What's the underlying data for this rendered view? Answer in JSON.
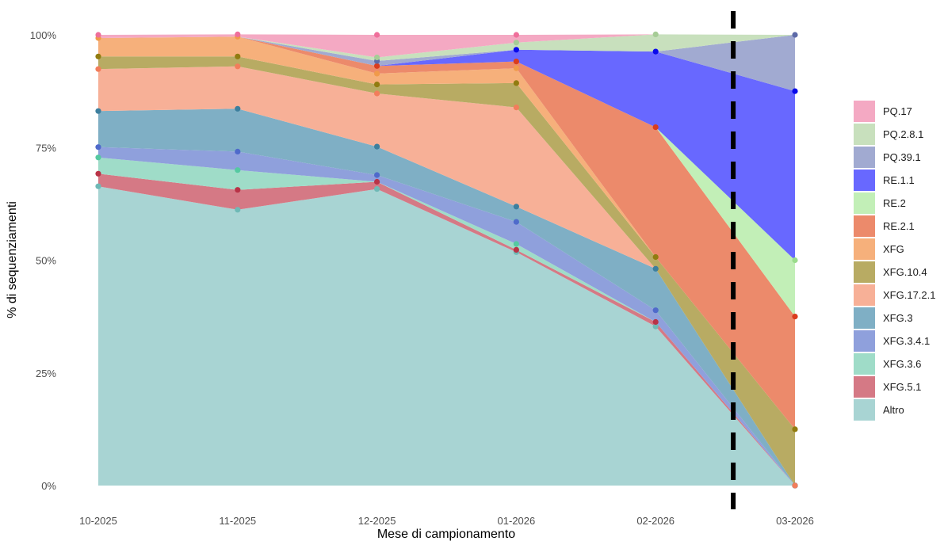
{
  "chart_data": {
    "type": "area",
    "stacked": true,
    "normalized": true,
    "title": "",
    "xlabel": "Mese di campionamento",
    "ylabel": "% di sequenziamenti",
    "x": [
      "10-2025",
      "11-2025",
      "12-2025",
      "01-2026",
      "02-2026",
      "03-2026"
    ],
    "y_ticks": [
      "0%",
      "25%",
      "50%",
      "75%",
      "100%"
    ],
    "ylim": [
      0,
      100
    ],
    "grid": false,
    "legend_position": "right",
    "marker": {
      "type": "dashed-vertical-line",
      "between": [
        "02-2026",
        "03-2026"
      ],
      "color": "#000000"
    },
    "series": [
      {
        "name": "Altro",
        "color": "#a8d4d3",
        "point_color": "#6fb9b6",
        "values": [
          66.4,
          61.2,
          65.8,
          51.8,
          35.3,
          0
        ]
      },
      {
        "name": "XFG.5.1",
        "color": "#d57985",
        "point_color": "#b93347",
        "values": [
          2.8,
          4.4,
          1.6,
          0.5,
          1.0,
          0
        ]
      },
      {
        "name": "XFG.3.6",
        "color": "#9fdcc8",
        "point_color": "#55c9a1",
        "values": [
          3.6,
          4.4,
          0,
          1.3,
          0,
          0
        ]
      },
      {
        "name": "XFG.3.4.1",
        "color": "#8fa0dc",
        "point_color": "#4f6acb",
        "values": [
          2.3,
          4.1,
          1.5,
          4.9,
          2.6,
          0
        ]
      },
      {
        "name": "XFG.3",
        "color": "#7fafc5",
        "point_color": "#3d7f9e",
        "values": [
          8.0,
          9.5,
          6.3,
          3.4,
          9.2,
          0
        ]
      },
      {
        "name": "XFG.17.2.1",
        "color": "#f7b097",
        "point_color": "#f27d5b",
        "values": [
          9.3,
          9.4,
          11.8,
          22.0,
          0,
          0
        ]
      },
      {
        "name": "XFG.10.4",
        "color": "#b8ab63",
        "point_color": "#917c10",
        "values": [
          2.8,
          2.2,
          2.0,
          5.4,
          2.6,
          12.5
        ]
      },
      {
        "name": "XFG",
        "color": "#f6b07b",
        "point_color": "#f09a4a",
        "values": [
          4.1,
          4.4,
          2.4,
          3.3,
          0,
          0
        ]
      },
      {
        "name": "RE.2.1",
        "color": "#ec8a6b",
        "point_color": "#da3c1e",
        "values": [
          0,
          0,
          1.7,
          1.5,
          28.8,
          25.0
        ]
      },
      {
        "name": "RE.2",
        "color": "#c2efb7",
        "point_color": "#9bdc8c",
        "values": [
          0,
          0,
          0,
          0,
          0,
          12.5
        ]
      },
      {
        "name": "RE.1.1",
        "color": "#6868ff",
        "point_color": "#0a0aeb",
        "values": [
          0,
          0,
          0,
          2.6,
          16.8,
          37.5
        ]
      },
      {
        "name": "PQ.39.1",
        "color": "#a1aad1",
        "point_color": "#5d6aa8",
        "values": [
          0,
          0,
          1.1,
          0,
          0,
          12.5
        ]
      },
      {
        "name": "PQ.2.8.1",
        "color": "#c8e0bd",
        "point_color": "#a6cc96",
        "values": [
          0,
          0,
          0.8,
          1.6,
          3.8,
          0
        ]
      },
      {
        "name": "PQ.17",
        "color": "#f4a9c3",
        "point_color": "#ef6f9b",
        "values": [
          0.7,
          0.5,
          5.0,
          1.7,
          0,
          0
        ]
      }
    ],
    "legend_order": [
      "PQ.17",
      "PQ.2.8.1",
      "PQ.39.1",
      "RE.1.1",
      "RE.2",
      "RE.2.1",
      "XFG",
      "XFG.10.4",
      "XFG.17.2.1",
      "XFG.3",
      "XFG.3.4.1",
      "XFG.3.6",
      "XFG.5.1",
      "Altro"
    ]
  }
}
